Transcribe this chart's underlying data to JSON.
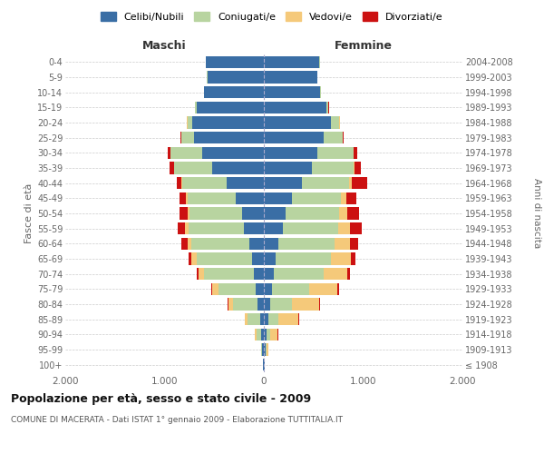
{
  "age_groups": [
    "100+",
    "95-99",
    "90-94",
    "85-89",
    "80-84",
    "75-79",
    "70-74",
    "65-69",
    "60-64",
    "55-59",
    "50-54",
    "45-49",
    "40-44",
    "35-39",
    "30-34",
    "25-29",
    "20-24",
    "15-19",
    "10-14",
    "5-9",
    "0-4"
  ],
  "birth_years": [
    "≤ 1908",
    "1909-1913",
    "1914-1918",
    "1919-1923",
    "1924-1928",
    "1929-1933",
    "1934-1938",
    "1939-1943",
    "1944-1948",
    "1949-1953",
    "1954-1958",
    "1959-1963",
    "1964-1968",
    "1969-1973",
    "1974-1978",
    "1979-1983",
    "1984-1988",
    "1989-1993",
    "1994-1998",
    "1999-2003",
    "2004-2008"
  ],
  "males": {
    "celibe": [
      5,
      15,
      25,
      40,
      60,
      80,
      100,
      120,
      150,
      200,
      220,
      280,
      370,
      520,
      620,
      700,
      720,
      680,
      600,
      570,
      580
    ],
    "coniugato": [
      3,
      8,
      50,
      120,
      250,
      380,
      500,
      560,
      580,
      560,
      530,
      490,
      450,
      380,
      320,
      130,
      50,
      15,
      5,
      2,
      2
    ],
    "vedovo": [
      1,
      4,
      15,
      30,
      50,
      60,
      55,
      50,
      40,
      30,
      20,
      15,
      10,
      8,
      5,
      3,
      2,
      1,
      0,
      0,
      0
    ],
    "divorziato": [
      0,
      0,
      2,
      5,
      8,
      12,
      20,
      30,
      60,
      80,
      80,
      60,
      50,
      40,
      25,
      10,
      5,
      2,
      0,
      0,
      0
    ]
  },
  "females": {
    "nubile": [
      5,
      20,
      30,
      50,
      60,
      80,
      100,
      120,
      150,
      190,
      220,
      280,
      380,
      480,
      540,
      600,
      680,
      630,
      570,
      540,
      560
    ],
    "coniugata": [
      3,
      8,
      30,
      100,
      220,
      380,
      500,
      560,
      560,
      560,
      540,
      500,
      480,
      420,
      360,
      190,
      80,
      20,
      5,
      2,
      2
    ],
    "vedova": [
      2,
      20,
      80,
      200,
      280,
      280,
      240,
      200,
      160,
      120,
      80,
      50,
      30,
      15,
      8,
      5,
      3,
      2,
      0,
      0,
      0
    ],
    "divorziata": [
      0,
      0,
      2,
      5,
      10,
      20,
      30,
      40,
      80,
      120,
      120,
      100,
      150,
      60,
      30,
      10,
      5,
      2,
      0,
      0,
      0
    ]
  },
  "colors": {
    "celibe_nubile": "#3a6ea5",
    "coniugato_coniugata": "#b8d4a0",
    "vedovo_vedova": "#f5c97a",
    "divorziato_divorziata": "#cc1111"
  },
  "xlim": 2000,
  "title": "Popolazione per età, sesso e stato civile - 2009",
  "subtitle": "COMUNE DI MACERATA - Dati ISTAT 1° gennaio 2009 - Elaborazione TUTTITALIA.IT",
  "xlabel_left": "Maschi",
  "xlabel_right": "Femmine",
  "ylabel_left": "Fasce di età",
  "ylabel_right": "Anni di nascita",
  "legend_labels": [
    "Celibi/Nubili",
    "Coniugati/e",
    "Vedovi/e",
    "Divorziati/e"
  ],
  "bg_color": "#ffffff",
  "grid_color": "#cccccc"
}
